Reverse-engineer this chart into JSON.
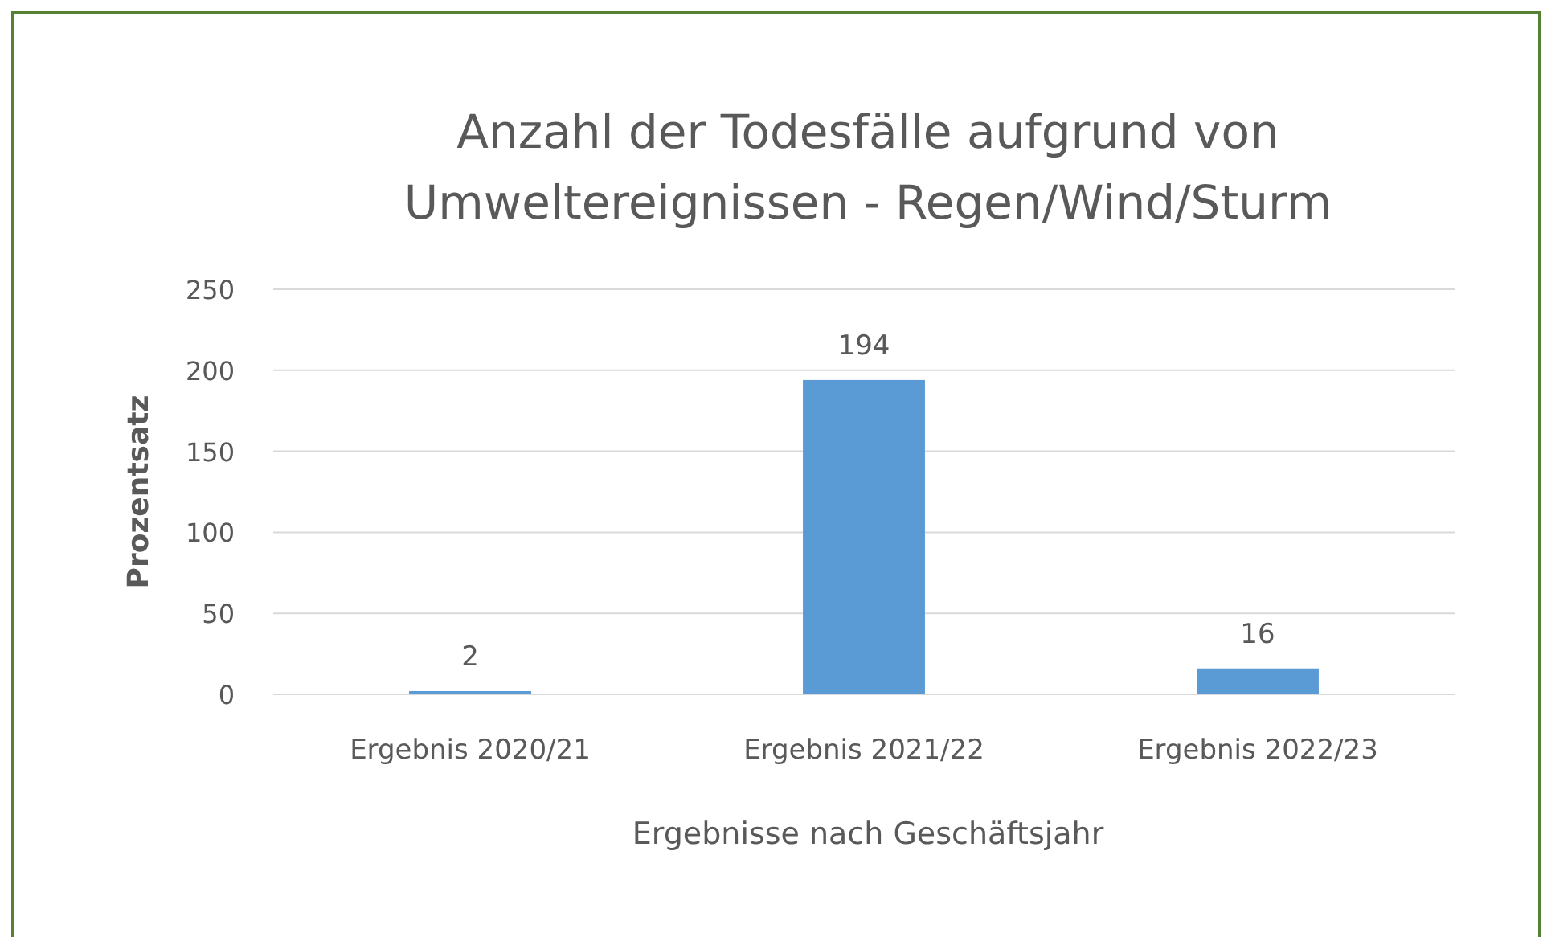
{
  "chart_data": {
    "type": "bar",
    "title": "Anzahl der Todesfälle aufgrund von Umweltereignissen - Regen/Wind/Sturm",
    "xlabel": "Ergebnisse nach Geschäftsjahr",
    "ylabel": "Prozentsatz",
    "categories": [
      "Ergebnis 2020/21",
      "Ergebnis 2021/22",
      "Ergebnis 2022/23"
    ],
    "values": [
      2,
      194,
      16
    ],
    "color": "#5b9bd5",
    "ylim": [
      0,
      250
    ],
    "yticks": [
      0,
      50,
      100,
      150,
      200,
      250
    ],
    "grid": "y",
    "data_labels": true
  }
}
